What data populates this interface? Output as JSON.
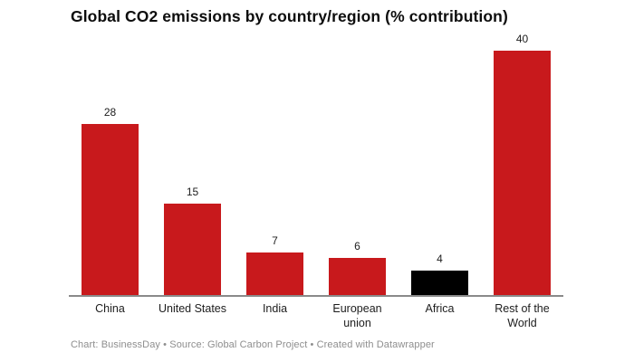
{
  "title": "Global CO2 emissions by country/region (% contribution)",
  "footer": {
    "text": "Chart: BusinessDay • Source: Global Carbon Project • Created with Datawrapper"
  },
  "colors": {
    "bar_red": "#c8191c",
    "bar_black": "#000000",
    "axis_line": "#8a8a8a",
    "title_text": "#0d0d0d",
    "label_text": "#1d1d1d",
    "footer_text": "#8e8e8e",
    "background": "#ffffff"
  },
  "chart_data": {
    "type": "bar",
    "title": "Global CO2 emissions by country/region (% contribution)",
    "categories": [
      "China",
      "United States",
      "India",
      "European union",
      "Africa",
      "Rest of the World"
    ],
    "values": [
      28,
      15,
      7,
      6,
      4,
      40
    ],
    "value_labels": [
      "28",
      "15",
      "7",
      "6",
      "4",
      "40"
    ],
    "bar_colors": [
      "#c8191c",
      "#c8191c",
      "#c8191c",
      "#c8191c",
      "#000000",
      "#c8191c"
    ],
    "xlabel": "",
    "ylabel": "",
    "ylim": [
      0,
      40
    ],
    "grid": false,
    "legend": false,
    "y_axis_shown": false,
    "orientation": "vertical"
  }
}
